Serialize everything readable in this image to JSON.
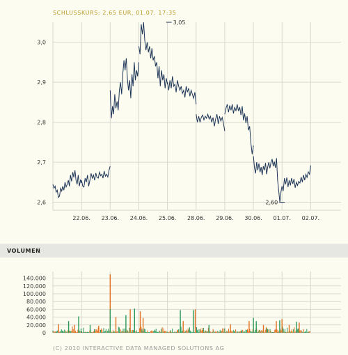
{
  "header": {
    "price_caption": "SCHLUSSKURS: 2,65 EUR, 01.07. 17:35"
  },
  "volume_section": {
    "title": "VOLUMEN"
  },
  "footer": {
    "copyright": "(C) 2010 INTERACTIVE DATA MANAGED SOLUTIONS AG"
  },
  "colors": {
    "background": "#fdfcf0",
    "price_line": "#1d3557",
    "caption_gold": "#b89b2b",
    "grid": "#d8d8d0",
    "volume_orange": "#e07020",
    "volume_green": "#2a9a5a",
    "volume_band": "#e6e6e2"
  },
  "chart_data": [
    {
      "type": "line",
      "name_in_image": "price",
      "x_tick_labels": [
        "22.06.",
        "23.06.",
        "24.06.",
        "25.06.",
        "28.06.",
        "29.06.",
        "30.06.",
        "01.07.",
        "02.07."
      ],
      "y_tick_labels": [
        "2,6",
        "2,7",
        "2,8",
        "2,9",
        "3,0"
      ],
      "y_ticks": [
        2.6,
        2.7,
        2.8,
        2.9,
        3.0
      ],
      "ylim": [
        2.58,
        3.05
      ],
      "grid": true,
      "annotations": [
        {
          "text": "3,05",
          "x_index": 4.05,
          "value": 3.05
        },
        {
          "text": "2,60",
          "x_index": 8.0,
          "value": 2.6
        }
      ],
      "segments": [
        {
          "x_start": 0.0,
          "x_end": 1.0,
          "values": [
            2.645,
            2.635,
            2.64,
            2.625,
            2.63,
            2.612,
            2.615,
            2.635,
            2.628,
            2.64,
            2.63,
            2.65,
            2.638,
            2.645,
            2.655,
            2.64,
            2.668,
            2.652,
            2.675,
            2.662,
            2.68,
            2.655,
            2.645,
            2.668,
            2.64,
            2.655,
            2.648
          ]
        },
        {
          "x_start": 1.0,
          "x_end": 2.0,
          "values": [
            2.655,
            2.64,
            2.638,
            2.66,
            2.65,
            2.668,
            2.64,
            2.655,
            2.672,
            2.66,
            2.668,
            2.655,
            2.673,
            2.662,
            2.66,
            2.675,
            2.666,
            2.67,
            2.66,
            2.678,
            2.665,
            2.67,
            2.663,
            2.68,
            2.69
          ]
        },
        {
          "x_start": 2.0,
          "x_end": 3.0,
          "values": [
            2.88,
            2.81,
            2.84,
            2.82,
            2.87,
            2.835,
            2.852,
            2.83,
            2.88,
            2.9,
            2.87,
            2.92,
            2.955,
            2.93,
            2.96,
            2.91,
            2.88,
            2.905,
            2.86,
            2.92,
            2.89,
            2.95,
            2.905,
            2.93,
            2.915,
            2.95
          ]
        },
        {
          "x_start": 3.0,
          "x_end": 4.0,
          "values": [
            2.99,
            2.97,
            3.045,
            3.02,
            3.05,
            3.005,
            2.98,
            3.0,
            2.975,
            2.99,
            2.96,
            2.985,
            2.955,
            2.965,
            2.94,
            2.95,
            2.91,
            2.94,
            2.89,
            2.93,
            2.905,
            2.92,
            2.885,
            2.91,
            2.895
          ]
        },
        {
          "x_start": 4.0,
          "x_end": 5.0,
          "values": [
            2.9,
            2.88,
            2.905,
            2.885,
            2.915,
            2.89,
            2.895,
            2.875,
            2.905,
            2.89,
            2.88,
            2.89,
            2.872,
            2.88,
            2.862,
            2.89,
            2.875,
            2.885,
            2.865,
            2.88,
            2.87,
            2.86,
            2.875,
            2.845
          ]
        },
        {
          "x_start": 5.0,
          "x_end": 6.0,
          "values": [
            2.82,
            2.8,
            2.815,
            2.8,
            2.812,
            2.818,
            2.806,
            2.815,
            2.81,
            2.82,
            2.808,
            2.815,
            2.8,
            2.812,
            2.79,
            2.808,
            2.82,
            2.796,
            2.815,
            2.803,
            2.812,
            2.798,
            2.778
          ]
        },
        {
          "x_start": 6.0,
          "x_end": 7.0,
          "values": [
            2.82,
            2.835,
            2.845,
            2.825,
            2.842,
            2.83,
            2.845,
            2.822,
            2.838,
            2.828,
            2.845,
            2.828,
            2.838,
            2.818,
            2.84,
            2.805,
            2.822,
            2.798,
            2.815,
            2.78,
            2.79,
            2.748,
            2.72,
            2.742
          ]
        },
        {
          "x_start": 7.0,
          "x_end": 8.0,
          "values": [
            2.715,
            2.685,
            2.672,
            2.7,
            2.68,
            2.697,
            2.675,
            2.688,
            2.668,
            2.69,
            2.68,
            2.698,
            2.67,
            2.688,
            2.7,
            2.685,
            2.7,
            2.708,
            2.69,
            2.702,
            2.686,
            2.71,
            2.655,
            2.628,
            2.6,
            2.625,
            2.64
          ]
        },
        {
          "x_start": 8.0,
          "x_end": 9.0,
          "values": [
            2.64,
            2.628,
            2.66,
            2.645,
            2.662,
            2.638,
            2.655,
            2.642,
            2.66,
            2.646,
            2.658,
            2.636,
            2.65,
            2.642,
            2.652,
            2.648,
            2.663,
            2.65,
            2.668,
            2.655,
            2.67,
            2.662,
            2.676,
            2.67,
            2.692
          ]
        }
      ]
    },
    {
      "type": "bar",
      "name_in_image": "VOLUMEN",
      "y_tick_labels": [
        "0",
        "20.000",
        "40.000",
        "60.000",
        "80.000",
        "100.000",
        "120.000",
        "140.000"
      ],
      "y_ticks": [
        0,
        20000,
        40000,
        60000,
        80000,
        100000,
        120000,
        140000
      ],
      "ylim": [
        0,
        150000
      ],
      "x_tick_labels_shared": true,
      "grid": true,
      "notable_bars": [
        {
          "x_index": 2.0,
          "value": 150000,
          "color": "orange"
        },
        {
          "x_index": 2.0,
          "value": 60000,
          "color": "green"
        },
        {
          "x_index": 2.2,
          "value": 40000,
          "color": "orange"
        },
        {
          "x_index": 2.55,
          "value": 45000,
          "color": "green"
        },
        {
          "x_index": 2.7,
          "value": 60000,
          "color": "orange"
        },
        {
          "x_index": 2.85,
          "value": 62000,
          "color": "green"
        },
        {
          "x_index": 3.05,
          "value": 55000,
          "color": "orange"
        },
        {
          "x_index": 3.15,
          "value": 38000,
          "color": "orange"
        },
        {
          "x_index": 4.45,
          "value": 58000,
          "color": "green"
        },
        {
          "x_index": 4.55,
          "value": 30000,
          "color": "orange"
        },
        {
          "x_index": 4.9,
          "value": 58000,
          "color": "green"
        },
        {
          "x_index": 4.97,
          "value": 60000,
          "color": "orange"
        },
        {
          "x_index": 5.45,
          "value": 20000,
          "color": "green"
        },
        {
          "x_index": 6.2,
          "value": 22000,
          "color": "orange"
        },
        {
          "x_index": 6.85,
          "value": 30000,
          "color": "orange"
        },
        {
          "x_index": 7.0,
          "value": 38000,
          "color": "green"
        },
        {
          "x_index": 7.1,
          "value": 30000,
          "color": "green"
        },
        {
          "x_index": 7.35,
          "value": 20000,
          "color": "orange"
        },
        {
          "x_index": 7.8,
          "value": 30000,
          "color": "orange"
        },
        {
          "x_index": 7.92,
          "value": 32000,
          "color": "green"
        },
        {
          "x_index": 8.0,
          "value": 35000,
          "color": "orange"
        },
        {
          "x_index": 8.25,
          "value": 20000,
          "color": "orange"
        },
        {
          "x_index": 8.5,
          "value": 28000,
          "color": "green"
        },
        {
          "x_index": 8.6,
          "value": 26000,
          "color": "orange"
        },
        {
          "x_index": 0.2,
          "value": 22000,
          "color": "orange"
        },
        {
          "x_index": 0.55,
          "value": 30000,
          "color": "green"
        },
        {
          "x_index": 0.75,
          "value": 20000,
          "color": "orange"
        },
        {
          "x_index": 0.9,
          "value": 42000,
          "color": "green"
        },
        {
          "x_index": 1.3,
          "value": 20000,
          "color": "green"
        },
        {
          "x_index": 1.6,
          "value": 18000,
          "color": "orange"
        }
      ]
    }
  ]
}
